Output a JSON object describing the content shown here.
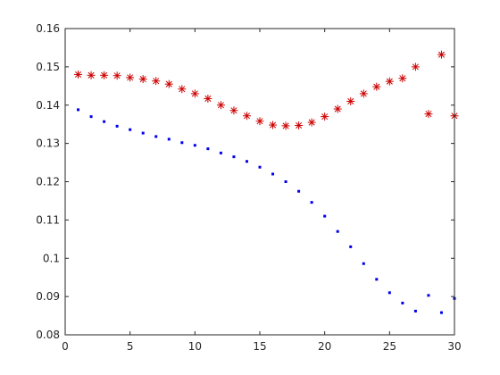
{
  "chart_data": {
    "type": "scatter",
    "title": "",
    "xlabel": "",
    "ylabel": "",
    "xlim": [
      0,
      30
    ],
    "ylim": [
      0.08,
      0.16
    ],
    "grid": false,
    "x_ticks": [
      "0",
      "5",
      "10",
      "15",
      "20",
      "25",
      "30"
    ],
    "y_ticks": [
      "0.08",
      "0.09",
      "0.1",
      "0.11",
      "0.12",
      "0.13",
      "0.14",
      "0.15",
      "0.16"
    ],
    "series": [
      {
        "marker": "asterisk",
        "color": "#cc0000",
        "x": [
          1,
          2,
          3,
          4,
          5,
          6,
          7,
          8,
          9,
          10,
          11,
          12,
          13,
          14,
          15,
          16,
          17,
          18,
          19,
          20,
          21,
          22,
          23,
          24,
          25,
          26,
          27,
          28,
          29,
          30
        ],
        "y": [
          0.148,
          0.1478,
          0.1478,
          0.1477,
          0.1472,
          0.1468,
          0.1463,
          0.1455,
          0.1442,
          0.143,
          0.1417,
          0.14,
          0.1386,
          0.1372,
          0.1358,
          0.1348,
          0.1346,
          0.1347,
          0.1355,
          0.137,
          0.139,
          0.141,
          0.143,
          0.1448,
          0.1462,
          0.147,
          0.15,
          0.1377,
          0.1532,
          0.1372
        ]
      },
      {
        "marker": "point",
        "color": "#0000ee",
        "x": [
          1,
          2,
          3,
          4,
          5,
          6,
          7,
          8,
          9,
          10,
          11,
          12,
          13,
          14,
          15,
          16,
          17,
          18,
          19,
          20,
          21,
          22,
          23,
          24,
          25,
          26,
          27,
          28,
          29,
          30
        ],
        "y": [
          0.1388,
          0.137,
          0.1357,
          0.1345,
          0.1336,
          0.1327,
          0.1318,
          0.1311,
          0.1302,
          0.1295,
          0.1286,
          0.1275,
          0.1265,
          0.1253,
          0.1238,
          0.122,
          0.12,
          0.1175,
          0.1146,
          0.111,
          0.107,
          0.103,
          0.0986,
          0.0945,
          0.091,
          0.0883,
          0.0862,
          0.0903,
          0.0858,
          0.0895
        ]
      }
    ]
  }
}
